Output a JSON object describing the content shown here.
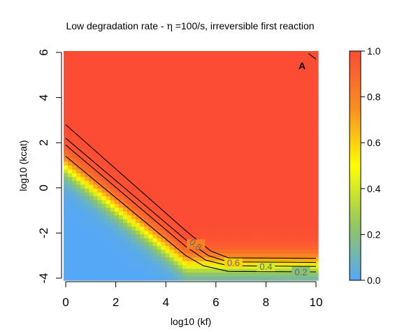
{
  "chart_data": {
    "type": "heatmap",
    "title_parts": [
      "Low degradation rate - ",
      "η",
      " =100/s, irreversible first reaction"
    ],
    "xlabel": "log10 (kf)",
    "ylabel": "log10 (kcat)",
    "panel_label": "A",
    "xlim": [
      0,
      10
    ],
    "ylim": [
      -4,
      6
    ],
    "x_ticks": [
      "0",
      "2",
      "4",
      "6",
      "8",
      "10"
    ],
    "y_ticks": [
      "-4",
      "-2",
      "0",
      "2",
      "4",
      "6"
    ],
    "colorbar": {
      "range": [
        0,
        1
      ],
      "ticks": [
        "0.0",
        "0.2",
        "0.4",
        "0.6",
        "0.8",
        "1.0"
      ],
      "colors": [
        "#55a8f5",
        "#95c95a",
        "#ffff00",
        "#fb8d1f",
        "#fc4c34"
      ]
    },
    "contours": [
      {
        "level": "0.2",
        "points": [
          [
            0,
            1.4
          ],
          [
            4.8,
            -3.0
          ],
          [
            5.5,
            -3.45
          ],
          [
            6.5,
            -3.7
          ],
          [
            10,
            -3.72
          ]
        ],
        "label_pos": [
          9.4,
          -3.72
        ]
      },
      {
        "level": "0.4",
        "points": [
          [
            0,
            1.9
          ],
          [
            4.8,
            -2.6
          ],
          [
            5.6,
            -3.2
          ],
          [
            6.5,
            -3.45
          ],
          [
            10,
            -3.48
          ]
        ],
        "label_pos": [
          8.0,
          -3.48
        ]
      },
      {
        "level": "0.6",
        "points": [
          [
            0,
            2.2
          ],
          [
            4.8,
            -2.3
          ],
          [
            5.7,
            -3.0
          ],
          [
            6.5,
            -3.28
          ],
          [
            10,
            -3.3
          ]
        ],
        "label_pos": [
          6.7,
          -3.3
        ]
      },
      {
        "level": "0.8",
        "points": [
          [
            0,
            2.8
          ],
          [
            4.8,
            -1.9
          ],
          [
            5.8,
            -2.8
          ],
          [
            6.5,
            -3.1
          ],
          [
            10,
            -3.12
          ]
        ],
        "label_pos": [
          5.2,
          -2.5
        ]
      },
      {
        "level": "",
        "points": [
          [
            9.7,
            5.95
          ],
          [
            10,
            5.7
          ]
        ],
        "label_pos": null
      }
    ]
  }
}
